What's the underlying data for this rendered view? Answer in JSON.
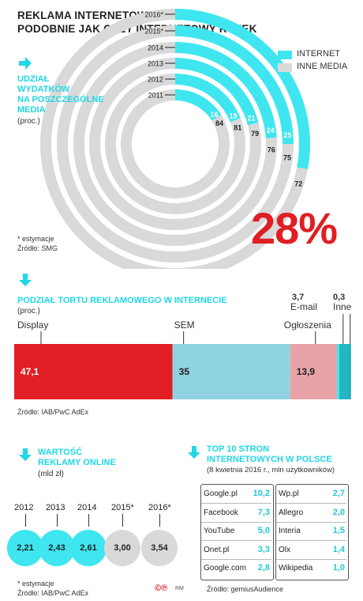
{
  "title_line1": "REKLAMA INTERNETOWA ROŚNIE",
  "title_line2": "PODOBNIE JAK CAŁY INTERNETOWY RYNEK",
  "colors": {
    "internet": "#3fe6f0",
    "other_media": "#d9d9d9",
    "red": "#e01e24",
    "cyan_text": "#1fd7e6",
    "pink": "#e8a3a6",
    "light_blue": "#8fd3e0"
  },
  "section1": {
    "heading_l1": "UDZIAŁ",
    "heading_l2": "WYDATKÓW",
    "heading_l3": "NA POSZCZEGÓLNE",
    "heading_l4": "MEDIA",
    "unit": "(proc.)",
    "note": "* estymacje",
    "source": "Źródło: SMG",
    "highlight": "28%",
    "legend_internet": "INTERNET",
    "legend_other": "INNE MEDIA"
  },
  "section2": {
    "heading": "PODZIAŁ TORTU REKLAMOWEGO W INTERNECIE",
    "unit": "(proc.)",
    "source": "Źródło: IAB/PwC AdEx",
    "email_value": "3,7",
    "email_label": "E-mail",
    "other_value": "0,3",
    "other_label": "Inne"
  },
  "section3": {
    "heading_l1": "WARTOŚĆ",
    "heading_l2": "REKLAMY ONLINE",
    "unit": "(mld zł)",
    "note": "* estymacje",
    "source": "Źródło: IAB/PwC AdEx"
  },
  "section4": {
    "heading_l1": "TOP 10 STRON",
    "heading_l2": "INTERNETOWYCH W POLSCE",
    "subtitle": "(8 kwietnia 2016 r., mln użytkowników)",
    "source": "Źródło: gemiusAudience"
  },
  "footer_mark": "RM",
  "chart_data": [
    {
      "type": "pie",
      "subtype": "radial-rings",
      "categories": [
        "2011",
        "2012",
        "2013",
        "2014",
        "2015*",
        "2016*"
      ],
      "series": [
        {
          "name": "INTERNET",
          "values": [
            16,
            19,
            21,
            24,
            25,
            28
          ]
        },
        {
          "name": "INNE MEDIA",
          "values": [
            84,
            81,
            79,
            76,
            75,
            72
          ]
        }
      ]
    },
    {
      "type": "bar",
      "subtype": "stacked-100",
      "categories": [
        "Display",
        "SEM",
        "Ogłoszenia",
        "E-mail",
        "Inne"
      ],
      "values": [
        47.1,
        35,
        13.9,
        3.7,
        0.3
      ],
      "value_labels": [
        "47,1",
        "35",
        "13,9",
        "3,7",
        "0,3"
      ]
    },
    {
      "type": "bar",
      "subtype": "bubbles",
      "categories": [
        "2012",
        "2013",
        "2014",
        "2015*",
        "2016*"
      ],
      "values": [
        2.21,
        2.43,
        2.61,
        3.0,
        3.54
      ],
      "value_labels": [
        "2,21",
        "2,43",
        "2,61",
        "3,00",
        "3,54"
      ]
    },
    {
      "type": "table",
      "rows": [
        {
          "site": "Google.pl",
          "value": "10,2"
        },
        {
          "site": "Facebook",
          "value": "7,3"
        },
        {
          "site": "YouTube",
          "value": "5,0"
        },
        {
          "site": "Onet.pl",
          "value": "3,3"
        },
        {
          "site": "Google.com",
          "value": "2,8"
        },
        {
          "site": "Wp.pl",
          "value": "2,7"
        },
        {
          "site": "Allegro",
          "value": "2,0"
        },
        {
          "site": "Interia",
          "value": "1,5"
        },
        {
          "site": "Olx",
          "value": "1,4"
        },
        {
          "site": "Wikipedia",
          "value": "1,0"
        }
      ]
    }
  ]
}
